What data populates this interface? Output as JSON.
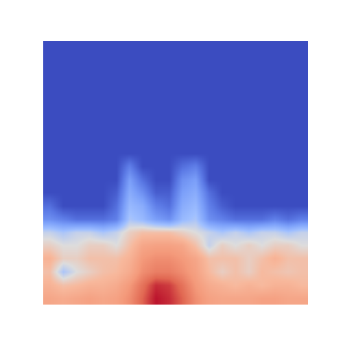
{
  "chart_data": {
    "type": "heatmap",
    "color": "coolwarm",
    "tick_labels": false,
    "zlim": [
      0,
      1
    ],
    "z": [
      [
        0,
        0,
        0,
        0,
        0,
        0,
        0,
        0,
        0,
        0,
        0,
        0,
        0,
        0,
        0,
        0,
        0,
        0,
        0,
        0
      ],
      [
        0,
        0,
        0,
        0,
        0,
        0,
        0,
        0,
        0,
        0,
        0,
        0,
        0,
        0,
        0,
        0,
        0,
        0,
        0,
        0
      ],
      [
        0,
        0,
        0,
        0,
        0,
        0,
        0,
        0,
        0,
        0,
        0,
        0,
        0,
        0,
        0,
        0,
        0,
        0,
        0,
        0
      ],
      [
        0,
        0,
        0,
        0,
        0,
        0,
        0,
        0,
        0,
        0,
        0,
        0,
        0,
        0,
        0,
        0,
        0,
        0,
        0,
        0
      ],
      [
        0,
        0,
        0,
        0,
        0,
        0,
        0,
        0,
        0,
        0,
        0,
        0,
        0,
        0,
        0,
        0,
        0,
        0,
        0,
        0
      ],
      [
        0,
        0,
        0,
        0,
        0,
        0,
        0,
        0,
        0,
        0,
        0,
        0,
        0,
        0,
        0,
        0,
        0,
        0,
        0,
        0
      ],
      [
        0,
        0,
        0,
        0,
        0,
        0,
        0,
        0,
        0,
        0,
        0,
        0,
        0,
        0,
        0,
        0,
        0,
        0,
        0,
        0
      ],
      [
        0,
        0,
        0,
        0,
        0,
        0,
        0,
        0,
        0,
        0,
        0,
        0,
        0,
        0,
        0,
        0,
        0,
        0,
        0,
        0
      ],
      [
        0,
        0,
        0,
        0,
        0,
        0,
        0,
        0,
        0,
        0,
        0,
        0,
        0,
        0,
        0,
        0,
        0,
        0,
        0,
        0
      ],
      [
        0,
        0,
        0,
        0,
        0,
        0,
        0.15,
        0,
        0,
        0,
        0.1,
        0.15,
        0,
        0,
        0,
        0,
        0,
        0,
        0,
        0
      ],
      [
        0,
        0,
        0,
        0,
        0,
        0,
        0.25,
        0.1,
        0,
        0,
        0.2,
        0.25,
        0,
        0,
        0,
        0,
        0,
        0,
        0,
        0
      ],
      [
        0,
        0,
        0,
        0,
        0,
        0.05,
        0.3,
        0.2,
        0.05,
        0.05,
        0.25,
        0.3,
        0.1,
        0,
        0,
        0,
        0,
        0,
        0,
        0
      ],
      [
        0.1,
        0,
        0,
        0,
        0,
        0.1,
        0.35,
        0.3,
        0.15,
        0.1,
        0.3,
        0.35,
        0.15,
        0.05,
        0,
        0,
        0,
        0,
        0,
        0
      ],
      [
        0.2,
        0.15,
        0.1,
        0.1,
        0.1,
        0.15,
        0.4,
        0.35,
        0.25,
        0.2,
        0.35,
        0.4,
        0.2,
        0.15,
        0.1,
        0.1,
        0.1,
        0.15,
        0.1,
        0.15
      ],
      [
        0.45,
        0.4,
        0.45,
        0.45,
        0.4,
        0.45,
        0.55,
        0.6,
        0.6,
        0.6,
        0.55,
        0.5,
        0.45,
        0.4,
        0.45,
        0.4,
        0.45,
        0.45,
        0.4,
        0.45
      ],
      [
        0.55,
        0.5,
        0.5,
        0.55,
        0.55,
        0.5,
        0.6,
        0.7,
        0.72,
        0.72,
        0.7,
        0.6,
        0.45,
        0.55,
        0.5,
        0.55,
        0.5,
        0.55,
        0.55,
        0.5
      ],
      [
        0.65,
        0.55,
        0.55,
        0.6,
        0.6,
        0.6,
        0.65,
        0.75,
        0.78,
        0.78,
        0.75,
        0.7,
        0.6,
        0.6,
        0.6,
        0.55,
        0.6,
        0.65,
        0.6,
        0.6
      ],
      [
        0.6,
        0.4,
        0.5,
        0.55,
        0.6,
        0.62,
        0.68,
        0.78,
        0.82,
        0.82,
        0.78,
        0.72,
        0.62,
        0.55,
        0.6,
        0.55,
        0.62,
        0.6,
        0.58,
        0.6
      ],
      [
        0.65,
        0.6,
        0.62,
        0.65,
        0.65,
        0.68,
        0.75,
        0.85,
        0.95,
        0.93,
        0.85,
        0.75,
        0.68,
        0.65,
        0.62,
        0.65,
        0.62,
        0.65,
        0.65,
        0.62
      ],
      [
        0.7,
        0.68,
        0.7,
        0.72,
        0.7,
        0.72,
        0.78,
        0.88,
        0.98,
        0.95,
        0.88,
        0.78,
        0.72,
        0.7,
        0.7,
        0.7,
        0.72,
        0.72,
        0.7,
        0.7
      ]
    ]
  }
}
